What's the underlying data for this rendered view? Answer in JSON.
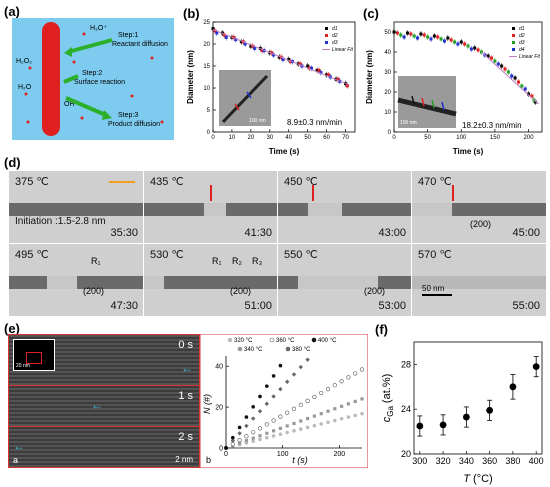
{
  "panel_a": {
    "label": "(a)",
    "step1": "Step:1",
    "step1_sub": "Reactant diffusion",
    "step2": "Step:2",
    "step2_sub": "Surface reaction",
    "step3": "Step:3",
    "step3_sub": "Product diffusion",
    "h3o": "H₃O⁺",
    "h2o2": "H₂O₂",
    "h2o": "H₂O",
    "oh": "OH⁻"
  },
  "panel_b": {
    "label": "(b)",
    "rate": "8.9±0.3 nm/min",
    "scale": "100 nm",
    "chart_data": {
      "type": "scatter",
      "xlabel": "Time (s)",
      "ylabel": "Diameter (nm)",
      "xlim": [
        0,
        75
      ],
      "ylim": [
        0,
        25
      ],
      "xticks": [
        "0",
        "10",
        "20",
        "30",
        "40",
        "50",
        "60",
        "70"
      ],
      "yticks": [
        "0",
        "5",
        "10",
        "15",
        "20",
        "25"
      ],
      "legend": [
        "d1",
        "d2",
        "d3",
        "Linear Fit"
      ],
      "legend_position": "top-right",
      "series": [
        {
          "name": "d1",
          "color": "#000000",
          "x": [
            0,
            5,
            10,
            15,
            20,
            25,
            30,
            35,
            40,
            45,
            50,
            55,
            60,
            65,
            70
          ],
          "y": [
            23.5,
            22.5,
            21.5,
            20.5,
            19.5,
            19,
            18,
            17,
            16.5,
            15.5,
            15,
            14,
            13,
            12,
            11
          ]
        },
        {
          "name": "d2",
          "color": "#e02020",
          "x": [
            1,
            6,
            11,
            16,
            21,
            26,
            31,
            36,
            41,
            46,
            51,
            56,
            61,
            66,
            71
          ],
          "y": [
            23,
            22,
            21.5,
            20.5,
            19.5,
            18.5,
            18,
            17,
            16,
            15.5,
            14.5,
            14,
            13,
            12,
            10.5
          ]
        },
        {
          "name": "d3",
          "color": "#2030d0",
          "x": [
            2,
            7,
            12,
            17,
            22,
            27,
            32,
            37,
            42,
            47,
            52,
            57,
            62,
            67
          ],
          "y": [
            22.5,
            21.5,
            21,
            20,
            19,
            18.5,
            17.5,
            16.5,
            16,
            15,
            14.5,
            13.5,
            12.5,
            11.5
          ]
        }
      ],
      "fit": {
        "x": [
          0,
          72
        ],
        "y": [
          23.3,
          10.7
        ],
        "color": "#c080c0"
      }
    }
  },
  "panel_c": {
    "label": "(c)",
    "rate": "18.2±0.3 nm/min",
    "scale": "100 nm",
    "chart_data": {
      "type": "scatter",
      "xlabel": "Time (s)",
      "ylabel": "Diameter (nm)",
      "xlim": [
        0,
        220
      ],
      "ylim": [
        0,
        55
      ],
      "xticks": [
        "0",
        "50",
        "100",
        "150",
        "200"
      ],
      "yticks": [
        "0",
        "10",
        "20",
        "30",
        "40",
        "50"
      ],
      "legend": [
        "d1",
        "d2",
        "d3",
        "d4",
        "Linear Fit"
      ],
      "legend_position": "top-right",
      "series": [
        {
          "name": "d1",
          "color": "#000000",
          "x": [
            0,
            20,
            40,
            60,
            80,
            100,
            120,
            140,
            160,
            180,
            200,
            210
          ],
          "y": [
            50,
            49.5,
            49,
            48,
            47,
            45,
            42,
            38,
            33,
            27,
            19,
            15
          ]
        },
        {
          "name": "d2",
          "color": "#e02020",
          "x": [
            5,
            25,
            45,
            65,
            85,
            105,
            125,
            145,
            165,
            185,
            205
          ],
          "y": [
            49.5,
            49,
            48.5,
            47.5,
            46,
            44,
            41,
            37,
            31.5,
            25,
            18
          ]
        },
        {
          "name": "d3",
          "color": "#20a020",
          "x": [
            10,
            30,
            50,
            70,
            90,
            110,
            130,
            150,
            170,
            190,
            208
          ],
          "y": [
            48.5,
            48,
            47.5,
            46.5,
            45,
            43,
            40,
            35.5,
            30,
            23,
            16
          ]
        },
        {
          "name": "d4",
          "color": "#2030d0",
          "x": [
            15,
            35,
            55,
            75,
            95,
            115,
            135,
            155,
            175,
            195
          ],
          "y": [
            47.5,
            47,
            46.5,
            45.5,
            44,
            41.5,
            38.5,
            34,
            28,
            21.5
          ]
        }
      ],
      "fit": {
        "x": [
          130,
          215
        ],
        "y": [
          40,
          14
        ],
        "color": "#c080c0"
      }
    }
  },
  "panel_d": {
    "label": "(d)",
    "tiles": [
      {
        "temp": "375 ℃",
        "time": "35:30",
        "note": "Initiation :1.5-2.8 nm"
      },
      {
        "temp": "435 ℃",
        "time": "41:30",
        "note": ""
      },
      {
        "temp": "450 ℃",
        "time": "43:00",
        "note": ""
      },
      {
        "temp": "470 ℃",
        "time": "45:00",
        "note": "(200)"
      },
      {
        "temp": "495 ℃",
        "time": "47:30",
        "note": "(200)"
      },
      {
        "temp": "530 ℃",
        "time": "51:00",
        "note": "(200)"
      },
      {
        "temp": "550 ℃",
        "time": "53:00",
        "note": "(200)"
      },
      {
        "temp": "570 ℃",
        "time": "55:00",
        "note": ""
      }
    ],
    "r1": "R₁",
    "r2": "R₂",
    "r3": "R₃",
    "scale": "50 nm"
  },
  "panel_e": {
    "label": "(e)",
    "sub_a": "a",
    "sub_b": "b",
    "inset_scale": "20 nm",
    "frames": [
      "0 s",
      "1 s",
      "2 s"
    ],
    "scale": "2 nm",
    "chart_data": {
      "type": "scatter",
      "xlabel": "t (s)",
      "ylabel": "N (#)",
      "xlim": [
        0,
        240
      ],
      "ylim": [
        0,
        45
      ],
      "xticks": [
        "0",
        "100",
        "200"
      ],
      "yticks": [
        "0",
        "20",
        "40"
      ],
      "legend": [
        "320 °C",
        "360 °C",
        "400 °C",
        "340 °C",
        "380 °C"
      ],
      "legend_position": "top",
      "series": [
        {
          "name": "320 °C",
          "color": "#bbbbbb",
          "marker": "circle",
          "slope": 0.07
        },
        {
          "name": "340 °C",
          "color": "#999999",
          "marker": "square",
          "slope": 0.1
        },
        {
          "name": "360 °C",
          "color": "#555555",
          "marker": "open-circle",
          "slope": 0.16
        },
        {
          "name": "380 °C",
          "color": "#666666",
          "marker": "diamond",
          "slope": 0.3
        },
        {
          "name": "400 °C",
          "color": "#111111",
          "marker": "circle",
          "slope": 0.42
        }
      ]
    }
  },
  "panel_f": {
    "label": "(f)",
    "chart_data": {
      "type": "scatter",
      "xlabel": "T (°C)",
      "ylabel": "cGa (at.%)",
      "ylabel_main": "c",
      "ylabel_sub": "Ga",
      "ylabel_unit": " (at.%)",
      "xlabel_main": "T",
      "xlabel_unit": " (°C)",
      "xlim": [
        295,
        405
      ],
      "ylim": [
        20,
        30
      ],
      "xticks": [
        "300",
        "320",
        "340",
        "360",
        "380",
        "400"
      ],
      "yticks": [
        "20",
        "24",
        "28"
      ],
      "x": [
        300,
        320,
        340,
        360,
        380,
        400
      ],
      "y": [
        22.5,
        22.6,
        23.3,
        23.9,
        26.0,
        27.8
      ],
      "err": [
        0.9,
        0.9,
        0.9,
        0.9,
        1.1,
        0.9
      ],
      "color": "#000000"
    }
  }
}
